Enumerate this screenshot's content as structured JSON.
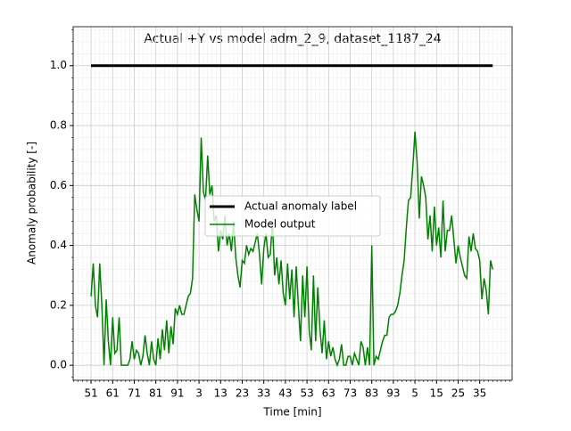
{
  "chart_data": {
    "type": "line",
    "title": "Actual +Y vs model adm_2_9, dataset_1187_24",
    "x_label": "Time [min]",
    "y_label": "Anomaly probability [-]",
    "xlim": [
      -8.3,
      195
    ],
    "ylim": [
      -0.05,
      1.13
    ],
    "xticks": [
      {
        "value": 0,
        "label": "51"
      },
      {
        "value": 10,
        "label": "61"
      },
      {
        "value": 20,
        "label": "71"
      },
      {
        "value": 30,
        "label": "81"
      },
      {
        "value": 40,
        "label": "91"
      },
      {
        "value": 50,
        "label": "3"
      },
      {
        "value": 60,
        "label": "13"
      },
      {
        "value": 70,
        "label": "23"
      },
      {
        "value": 80,
        "label": "33"
      },
      {
        "value": 90,
        "label": "43"
      },
      {
        "value": 100,
        "label": "53"
      },
      {
        "value": 110,
        "label": "63"
      },
      {
        "value": 120,
        "label": "73"
      },
      {
        "value": 130,
        "label": "83"
      },
      {
        "value": 140,
        "label": "93"
      },
      {
        "value": 150,
        "label": "5"
      },
      {
        "value": 160,
        "label": "15"
      },
      {
        "value": 170,
        "label": "25"
      },
      {
        "value": 180,
        "label": "35"
      }
    ],
    "yticks": [
      {
        "value": 0,
        "label": "0.0"
      },
      0.2,
      0.4,
      0.6,
      0.8,
      {
        "value": 1,
        "label": "1.0"
      }
    ],
    "grid": true,
    "minor_grid": true,
    "legend": "center",
    "series": [
      {
        "name": "Actual anomaly label",
        "color": "#000000",
        "line_width": 3,
        "values": [
          1,
          1,
          1,
          1,
          1,
          1,
          1,
          1,
          1,
          1,
          1,
          1,
          1,
          1,
          1,
          1,
          1,
          1,
          1,
          1,
          1,
          1,
          1,
          1,
          1,
          1,
          1,
          1,
          1,
          1,
          1,
          1,
          1,
          1,
          1,
          1,
          1,
          1,
          1,
          1,
          1,
          1,
          1,
          1,
          1,
          1,
          1,
          1,
          1,
          1,
          1,
          1,
          1,
          1,
          1,
          1,
          1,
          1,
          1,
          1,
          1,
          1,
          1,
          1,
          1,
          1,
          1,
          1,
          1,
          1,
          1,
          1,
          1,
          1,
          1,
          1,
          1,
          1,
          1,
          1,
          1,
          1,
          1,
          1,
          1,
          1,
          1,
          1,
          1,
          1,
          1,
          1,
          1,
          1,
          1,
          1,
          1,
          1,
          1,
          1,
          1,
          1,
          1,
          1,
          1,
          1,
          1,
          1,
          1,
          1,
          1,
          1,
          1,
          1,
          1,
          1,
          1,
          1,
          1,
          1,
          1,
          1,
          1,
          1,
          1,
          1,
          1,
          1,
          1,
          1,
          1,
          1,
          1,
          1,
          1,
          1,
          1,
          1,
          1,
          1,
          1,
          1,
          1,
          1,
          1,
          1,
          1,
          1,
          1,
          1,
          1,
          1,
          1,
          1,
          1,
          1,
          1,
          1,
          1,
          1,
          1,
          1,
          1,
          1,
          1,
          1,
          1,
          1,
          1,
          1,
          1,
          1,
          1,
          1,
          1,
          1,
          1,
          1,
          1,
          1,
          1,
          1,
          1,
          1,
          1,
          1,
          1
        ]
      },
      {
        "name": "Model output",
        "color": "#008000",
        "line_width": 1.5,
        "values": [
          0.23,
          0.34,
          0.2,
          0.16,
          0.34,
          0.2,
          0,
          0.22,
          0.08,
          0,
          0.16,
          0.04,
          0.05,
          0.16,
          0,
          0,
          0,
          0,
          0.02,
          0.08,
          0.02,
          0.05,
          0.04,
          0,
          0.03,
          0.1,
          0.04,
          0,
          0.08,
          0.02,
          0,
          0.09,
          0.02,
          0.12,
          0.05,
          0.15,
          0.04,
          0.13,
          0.07,
          0.19,
          0.17,
          0.2,
          0.17,
          0.17,
          0.2,
          0.23,
          0.24,
          0.29,
          0.57,
          0.52,
          0.48,
          0.76,
          0.58,
          0.55,
          0.7,
          0.57,
          0.6,
          0.48,
          0.5,
          0.38,
          0.45,
          0.42,
          0.5,
          0.4,
          0.44,
          0.38,
          0.48,
          0.36,
          0.3,
          0.26,
          0.35,
          0.34,
          0.4,
          0.37,
          0.39,
          0.38,
          0.41,
          0.44,
          0.37,
          0.27,
          0.39,
          0.44,
          0.36,
          0.37,
          0.48,
          0.3,
          0.36,
          0.27,
          0.35,
          0.24,
          0.2,
          0.34,
          0.22,
          0.32,
          0.16,
          0.33,
          0.2,
          0.08,
          0.3,
          0.16,
          0.33,
          0.12,
          0.05,
          0.3,
          0.08,
          0.26,
          0.12,
          0.04,
          0.15,
          0.02,
          0.08,
          0.03,
          0.06,
          0.02,
          0,
          0.02,
          0.07,
          0,
          0,
          0.03,
          0.03,
          0,
          0.04,
          0.02,
          0,
          0.08,
          0.06,
          0,
          0.06,
          0,
          0.4,
          0,
          0.03,
          0.02,
          0.05,
          0.08,
          0.1,
          0.1,
          0.16,
          0.17,
          0.17,
          0.18,
          0.2,
          0.24,
          0.3,
          0.35,
          0.46,
          0.55,
          0.56,
          0.66,
          0.78,
          0.68,
          0.49,
          0.63,
          0.6,
          0.56,
          0.42,
          0.5,
          0.38,
          0.53,
          0.4,
          0.46,
          0.36,
          0.55,
          0.38,
          0.45,
          0.45,
          0.5,
          0.42,
          0.34,
          0.4,
          0.36,
          0.33,
          0.3,
          0.29,
          0.43,
          0.38,
          0.44,
          0.39,
          0.38,
          0.35,
          0.22,
          0.29,
          0.25,
          0.17,
          0.35,
          0.32
        ]
      }
    ]
  }
}
